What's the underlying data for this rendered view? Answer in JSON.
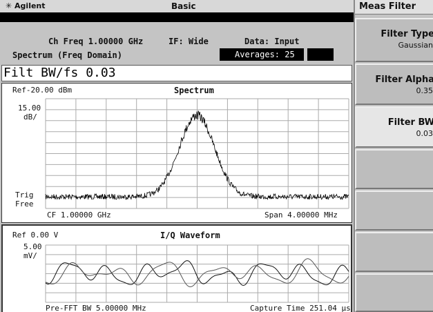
{
  "header": {
    "brand": "Agilent",
    "mode": "Basic"
  },
  "status": {
    "ch_freq": "Ch Freq 1.00000 GHz",
    "if": "IF: Wide",
    "data": "Data: Input",
    "view": "Spectrum (Freq Domain)",
    "averages": "Averages: 25"
  },
  "entry": {
    "label": "Filt BW/fs",
    "value": "0.03"
  },
  "spectrum": {
    "ref": "Ref-20.00 dBm",
    "title": "Spectrum",
    "scale": "15.00",
    "scale_unit": "dB/",
    "trig": "Trig",
    "trig_mode": "Free",
    "center": "CF 1.00000 GHz",
    "span": "Span  4.00000 MHz"
  },
  "iq": {
    "ref": "Ref 0.00  V",
    "title": "I/Q Waveform",
    "scale": "5.00",
    "scale_unit": "mV/",
    "bw": "Pre-FFT BW 5.00000 MHz",
    "capture": "Capture Time 251.04 µs"
  },
  "menu": {
    "title": "Meas Filter",
    "keys": [
      {
        "label": "Filter Type",
        "value": "Gaussian"
      },
      {
        "label": "Filter Alpha",
        "value": "0.35"
      },
      {
        "label": "Filter BW",
        "value": "0.03"
      }
    ]
  }
}
